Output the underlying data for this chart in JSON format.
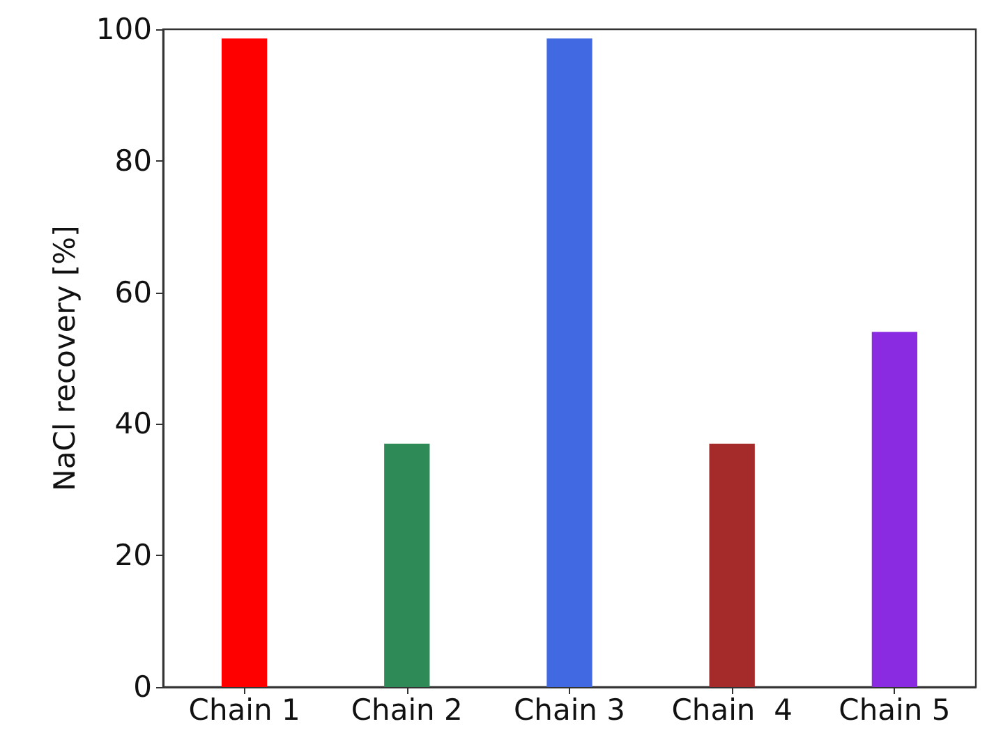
{
  "chart_data": {
    "type": "bar",
    "ylabel": "NaCl recovery [%]",
    "categories": [
      "Chain 1",
      "Chain 2",
      "Chain 3",
      "Chain  4",
      "Chain 5"
    ],
    "values": [
      98.6,
      37,
      98.6,
      37,
      54
    ],
    "colors": [
      "#ff0000",
      "#2e8b57",
      "#4169e1",
      "#a52a2a",
      "#8a2be2"
    ],
    "ylim": [
      0,
      100
    ],
    "yticks": [
      0,
      20,
      40,
      60,
      80,
      100
    ],
    "grid": false
  }
}
